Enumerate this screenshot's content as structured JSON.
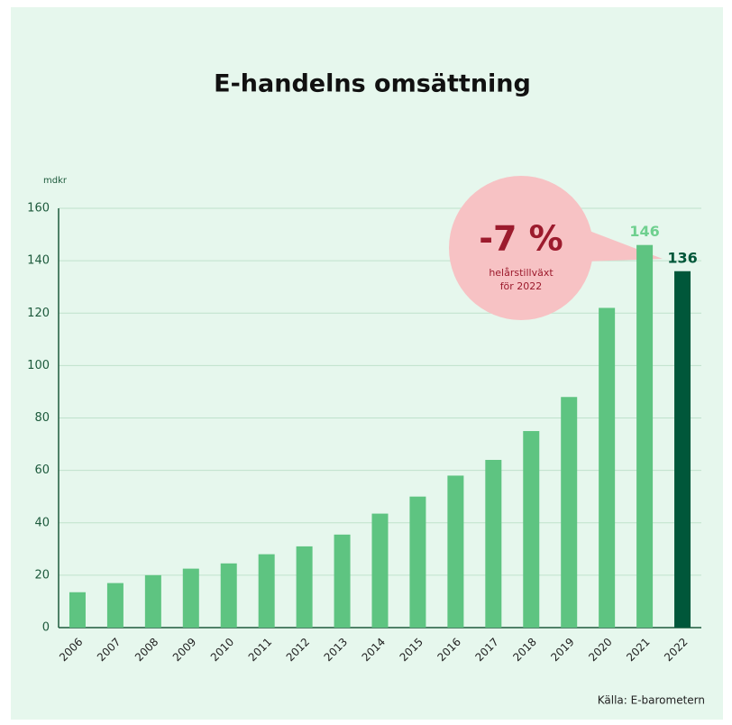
{
  "chart_data": {
    "type": "bar",
    "title": "E-handelns omsättning",
    "y_unit": "mdkr",
    "categories": [
      "2006",
      "2007",
      "2008",
      "2009",
      "2010",
      "2011",
      "2012",
      "2013",
      "2014",
      "2015",
      "2016",
      "2017",
      "2018",
      "2019",
      "2020",
      "2021",
      "2022"
    ],
    "values": [
      13.5,
      17,
      20,
      22.5,
      24.5,
      28,
      31,
      35.5,
      43.5,
      50,
      58,
      64,
      75,
      88,
      122,
      146,
      136
    ],
    "value_labels": [
      null,
      null,
      null,
      null,
      null,
      null,
      null,
      null,
      null,
      null,
      null,
      null,
      null,
      null,
      null,
      "146",
      "136"
    ],
    "colors": [
      "#5ec481",
      "#5ec481",
      "#5ec481",
      "#5ec481",
      "#5ec481",
      "#5ec481",
      "#5ec481",
      "#5ec481",
      "#5ec481",
      "#5ec481",
      "#5ec481",
      "#5ec481",
      "#5ec481",
      "#5ec481",
      "#5ec481",
      "#5ec481",
      "#00573a"
    ],
    "ylim": [
      0,
      160
    ],
    "yticks": [
      0,
      20,
      40,
      60,
      80,
      100,
      120,
      140,
      160
    ],
    "grid": true,
    "callout": {
      "headline": "-7 %",
      "text": [
        "helårstillväxt",
        "för 2022"
      ]
    },
    "source": "Källa: E-barometern"
  }
}
